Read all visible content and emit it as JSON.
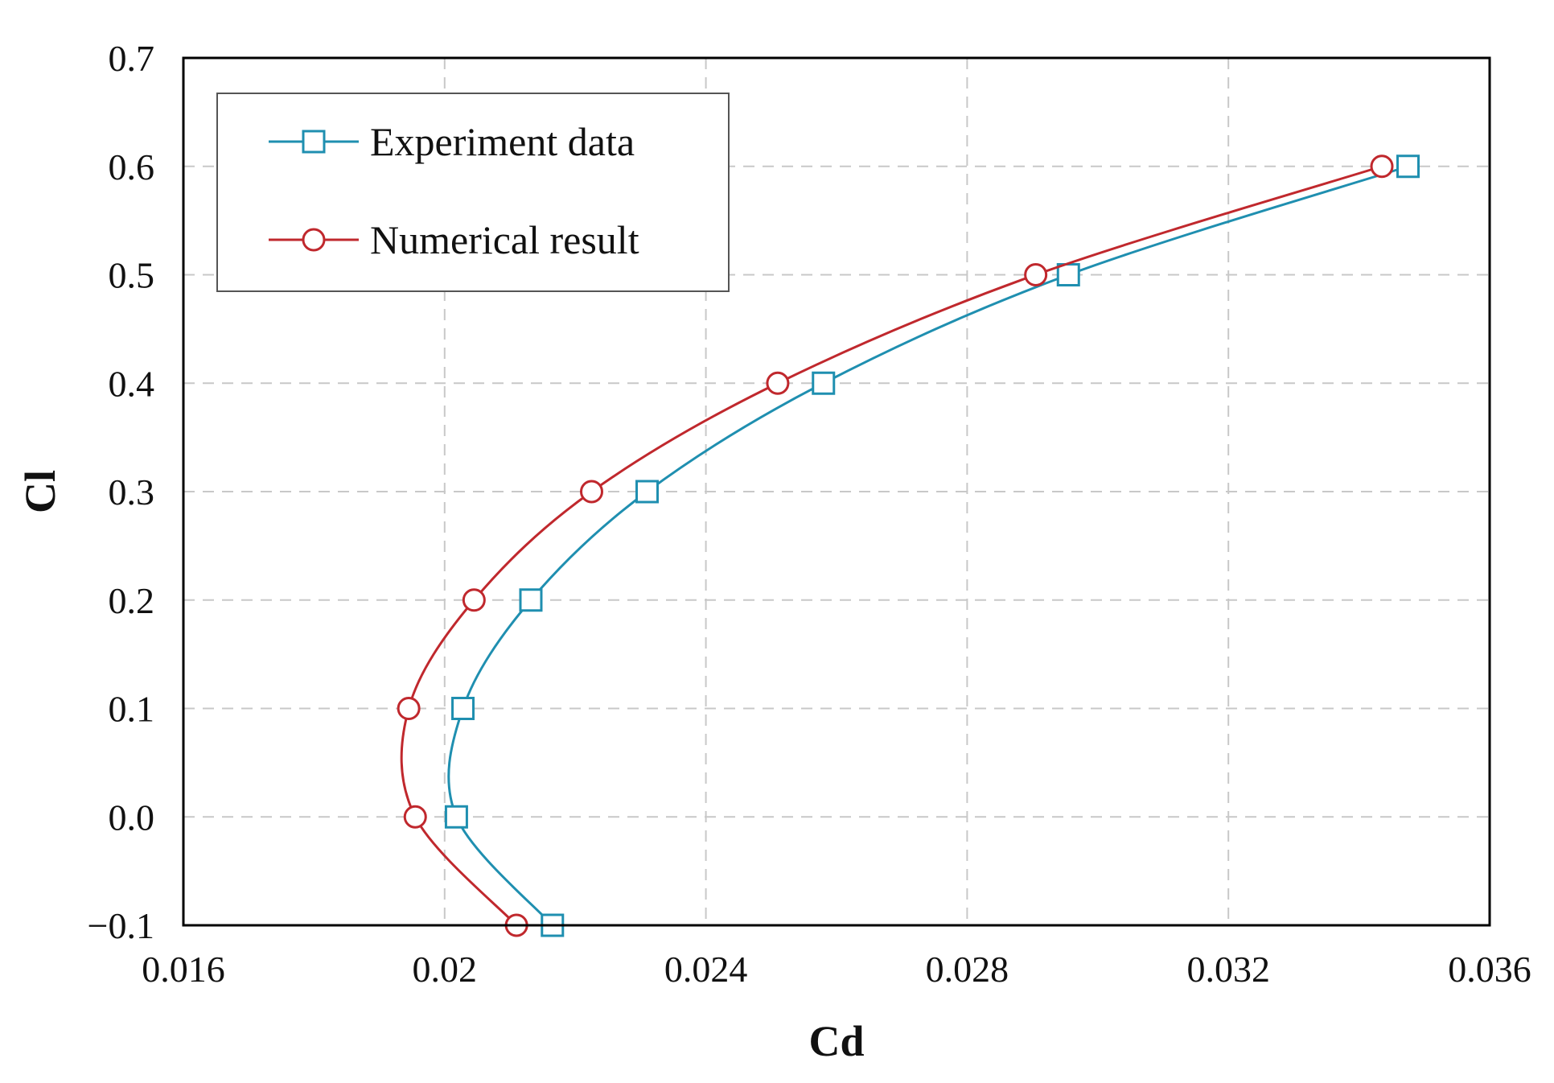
{
  "chart_data": {
    "type": "line",
    "title": "",
    "xlabel": "Cd",
    "ylabel": "Cl",
    "xlim": [
      0.016,
      0.036
    ],
    "ylim": [
      -0.1,
      0.7
    ],
    "x_ticks": [
      0.016,
      0.02,
      0.024,
      0.028,
      0.032,
      0.036
    ],
    "x_tick_labels": [
      "0.016",
      "0.02",
      "0.024",
      "0.028",
      "0.032",
      "0.036"
    ],
    "y_ticks": [
      -0.1,
      0.0,
      0.1,
      0.2,
      0.3,
      0.4,
      0.5,
      0.6,
      0.7
    ],
    "y_tick_labels": [
      "−0.1",
      "0.0",
      "0.1",
      "0.2",
      "0.3",
      "0.4",
      "0.5",
      "0.6",
      "0.7"
    ],
    "grid": true,
    "legend_position": "top-left",
    "series": [
      {
        "name": "Experiment data",
        "color": "#1f8fb0",
        "marker": "square",
        "x": [
          0.02165,
          0.02018,
          0.02028,
          0.02132,
          0.0231,
          0.0258,
          0.02955,
          0.03475
        ],
        "y": [
          -0.1,
          0.0,
          0.1,
          0.2,
          0.3,
          0.4,
          0.5,
          0.6
        ]
      },
      {
        "name": "Numerical result",
        "color": "#c0282d",
        "marker": "circle",
        "x": [
          0.0211,
          0.01955,
          0.01945,
          0.02045,
          0.02225,
          0.0251,
          0.02905,
          0.03435
        ],
        "y": [
          -0.1,
          0.0,
          0.1,
          0.2,
          0.3,
          0.4,
          0.5,
          0.6
        ]
      }
    ]
  }
}
